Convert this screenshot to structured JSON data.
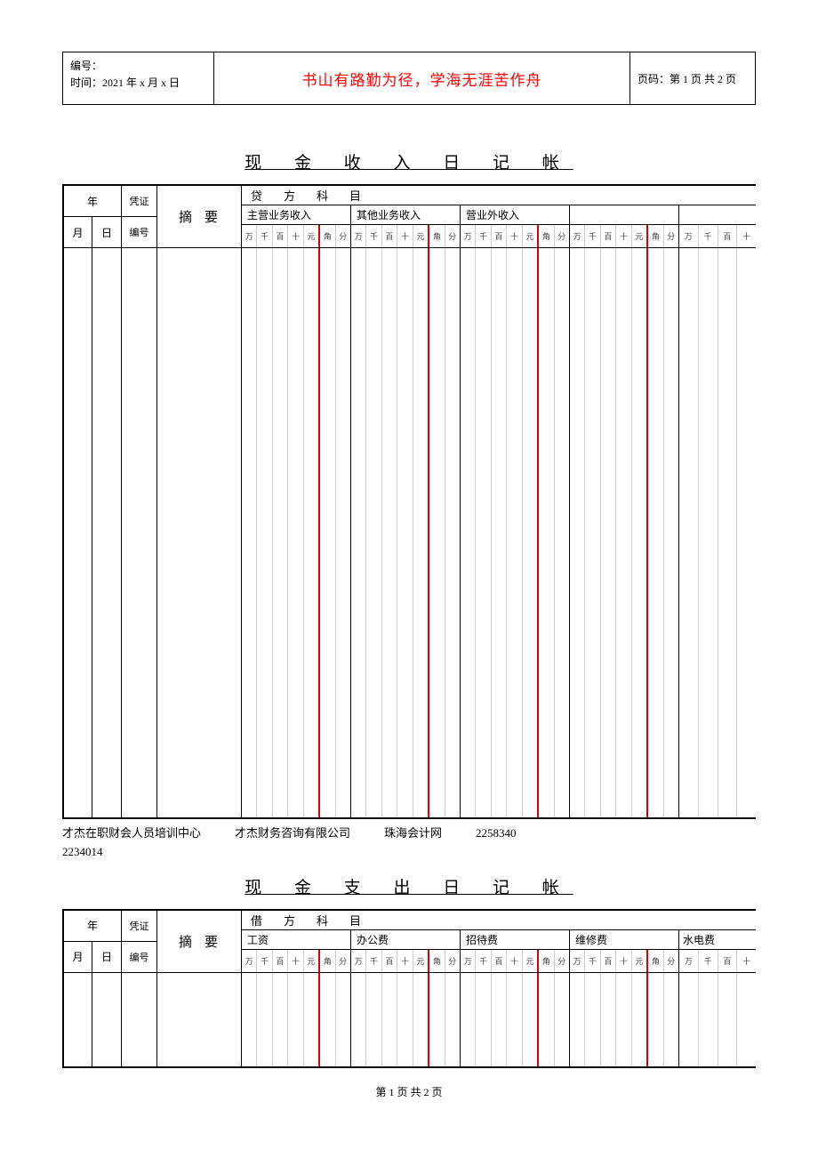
{
  "header": {
    "serial_label": "编号：",
    "time_label": "时间：",
    "time_value": "2021 年 x 月 x 日",
    "motto": "书山有路勤为径，学海无涯苦作舟",
    "page_label": "页码：",
    "page_value": "第 1 页 共 2 页"
  },
  "title1": "现 金 收 入 日 记 帐",
  "title2": "现 金 支 出 日 记 帐",
  "cols": {
    "year": "年",
    "month": "月",
    "day": "日",
    "voucher": "凭证",
    "voucher_no": "编号",
    "summary": "摘要",
    "credit_subject": "贷方科目",
    "debit_subject": "借方科目"
  },
  "digits": [
    "万",
    "千",
    "百",
    "十",
    "元",
    "角",
    "分"
  ],
  "accounts1": [
    {
      "name": "主营业务收入",
      "wide": true
    },
    {
      "name": "其他业务收入",
      "wide": true
    },
    {
      "name": "营业外收入",
      "wide": true
    },
    {
      "name": "",
      "wide": true
    },
    {
      "name": "",
      "wide": false
    }
  ],
  "accounts2": [
    {
      "name": "工资",
      "wide": true
    },
    {
      "name": "办公费",
      "wide": true
    },
    {
      "name": "招待费",
      "wide": true
    },
    {
      "name": "维修费",
      "wide": true
    },
    {
      "name": "水电费",
      "wide": false
    }
  ],
  "footer1_parts": [
    "才杰在职财会人员培训中心",
    "才杰财务咨询有限公司",
    "珠海会计网",
    "2258340"
  ],
  "footer1_line2": "2234014",
  "pagefoot": "第 1 页 共 2 页",
  "colors": {
    "motto": "#ff0000",
    "rule": "#d00",
    "grid": "#ccc"
  }
}
